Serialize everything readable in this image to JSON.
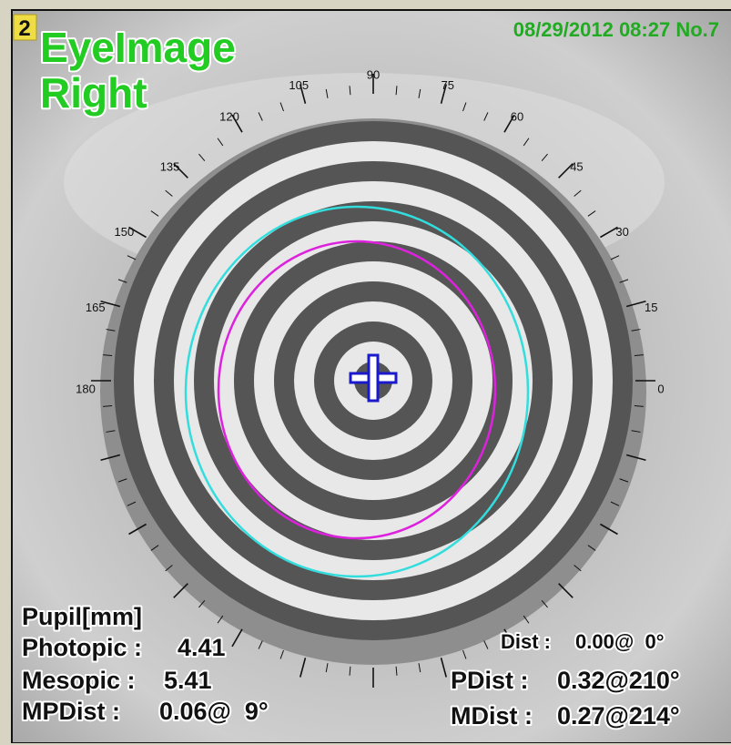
{
  "panel_number": "2",
  "title": "EyeImage",
  "eye": "Right",
  "timestamp": "08/29/2012 08:27 No.7",
  "angle_labels": [
    0,
    15,
    30,
    45,
    60,
    75,
    90,
    105,
    120,
    135,
    150,
    165,
    180
  ],
  "pupil": {
    "heading": "Pupil[mm]",
    "rows": [
      {
        "label": "Photopic :",
        "value": "4.41"
      },
      {
        "label": "Mesopic :",
        "value": "5.41"
      },
      {
        "label": "MPDist :",
        "value": "0.06@  9°"
      }
    ]
  },
  "distances": [
    {
      "label": "Dist :",
      "value": "0.00@  0°"
    },
    {
      "label": "PDist :",
      "value": "0.32@210°"
    },
    {
      "label": "MDist :",
      "value": "0.27@214°"
    }
  ]
}
